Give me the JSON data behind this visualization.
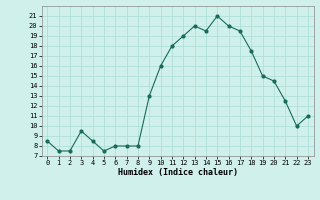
{
  "x": [
    0,
    1,
    2,
    3,
    4,
    5,
    6,
    7,
    8,
    9,
    10,
    11,
    12,
    13,
    14,
    15,
    16,
    17,
    18,
    19,
    20,
    21,
    22,
    23
  ],
  "y": [
    8.5,
    7.5,
    7.5,
    9.5,
    8.5,
    7.5,
    8.0,
    8.0,
    8.0,
    13.0,
    16.0,
    18.0,
    19.0,
    20.0,
    19.5,
    21.0,
    20.0,
    19.5,
    17.5,
    15.0,
    14.5,
    12.5,
    10.0,
    11.0
  ],
  "xlabel": "Humidex (Indice chaleur)",
  "ylim": [
    7,
    22
  ],
  "xlim": [
    -0.5,
    23.5
  ],
  "yticks": [
    7,
    8,
    9,
    10,
    11,
    12,
    13,
    14,
    15,
    16,
    17,
    18,
    19,
    20,
    21
  ],
  "xticks": [
    0,
    1,
    2,
    3,
    4,
    5,
    6,
    7,
    8,
    9,
    10,
    11,
    12,
    13,
    14,
    15,
    16,
    17,
    18,
    19,
    20,
    21,
    22,
    23
  ],
  "line_color": "#1a6b5a",
  "bg_color": "#cff0eb",
  "grid_color": "#aaddd8",
  "tick_fontsize": 5.0,
  "xlabel_fontsize": 6.0
}
